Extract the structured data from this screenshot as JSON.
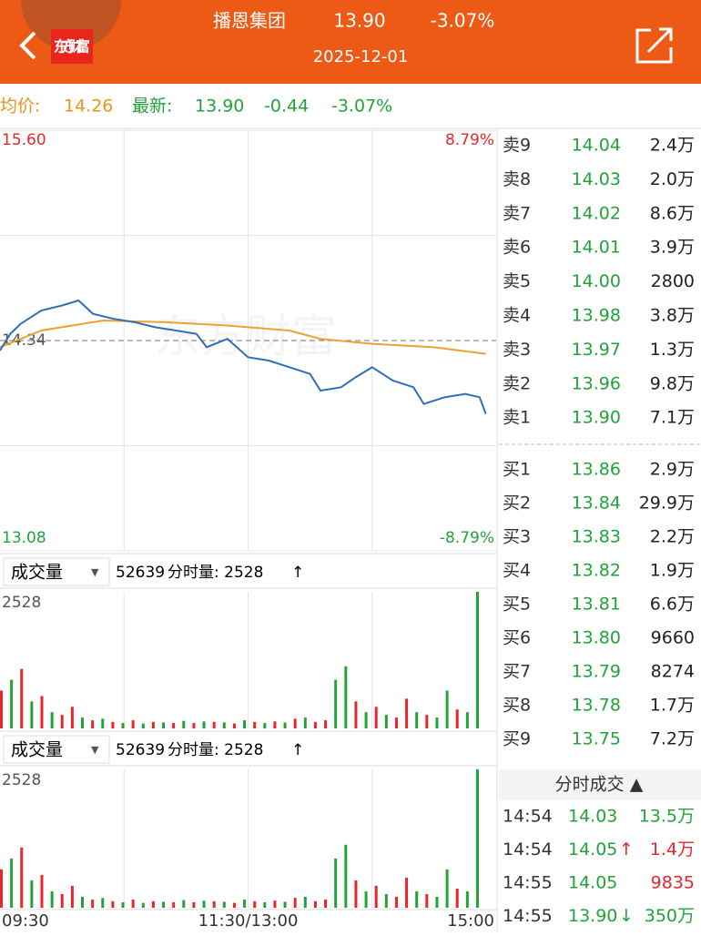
{
  "header": {
    "logo": "东方财富",
    "title": "播恩集团",
    "price": "13.90",
    "change": "-3.07%",
    "date": "2025-12-01"
  },
  "info": {
    "avg_label": "均价:",
    "avg": "14.26",
    "last_label": "最新:",
    "last": "13.90",
    "change": "-0.44",
    "pct": "-3.07%"
  },
  "watermark": "东方财富",
  "price_chart": {
    "ylim": [
      13.08,
      15.6
    ],
    "xlim": [
      0,
      240
    ],
    "yticks": [
      {
        "value": 15.6,
        "label": "15.60"
      },
      {
        "value": 14.34,
        "label": "14.34"
      },
      {
        "value": 13.08,
        "label": "13.08"
      }
    ],
    "pct_labels": [
      "8.79%",
      "-8.79%"
    ],
    "xticks": [
      {
        "value": 0,
        "label": "09:30"
      },
      {
        "value": 120,
        "label": "11:30/13:00"
      },
      {
        "value": 240,
        "label": "15:00"
      }
    ],
    "x": [
      0,
      5,
      10,
      15,
      20,
      30,
      38,
      45,
      55,
      65,
      75,
      85,
      95,
      100,
      110,
      120,
      130,
      140,
      150,
      155,
      165,
      172,
      180,
      190,
      200,
      205,
      215,
      225,
      232,
      235
    ],
    "price": [
      14.28,
      14.38,
      14.44,
      14.48,
      14.52,
      14.55,
      14.58,
      14.5,
      14.47,
      14.45,
      14.42,
      14.4,
      14.38,
      14.3,
      14.35,
      14.24,
      14.22,
      14.18,
      14.14,
      14.04,
      14.06,
      14.12,
      14.18,
      14.1,
      14.06,
      13.96,
      14,
      14.02,
      14,
      13.9
    ],
    "avg_x": [
      0,
      20,
      50,
      80,
      110,
      140,
      155,
      180,
      210,
      235
    ],
    "avg": [
      14.3,
      14.4,
      14.46,
      14.45,
      14.43,
      14.4,
      14.35,
      14.32,
      14.3,
      14.26
    ],
    "price_color": "#2f6fb5",
    "avg_color": "#f0a030"
  },
  "volume": {
    "label": "成交量",
    "total": "52639",
    "current": "分时量: 2528",
    "arrow": "↑",
    "ylim": [
      0,
      2528
    ],
    "values": [
      700,
      900,
      1100,
      500,
      600,
      300,
      250,
      400,
      200,
      150,
      180,
      120,
      100,
      150,
      90,
      120,
      110,
      100,
      140,
      100,
      130,
      120,
      110,
      90,
      150,
      120,
      100,
      130,
      110,
      180,
      200,
      120,
      150,
      900,
      1150,
      500,
      300,
      400,
      250,
      200,
      550,
      300,
      250,
      200,
      700,
      350,
      300,
      2528
    ],
    "colors": [
      "#e8262b",
      "#22a33a",
      "#e8262b",
      "#22a33a",
      "#e8262b",
      "#22a33a",
      "#e8262b",
      "#e8262b",
      "#22a33a",
      "#e8262b",
      "#22a33a",
      "#e8262b",
      "#22a33a",
      "#e8262b",
      "#22a33a",
      "#e8262b",
      "#22a33a",
      "#e8262b",
      "#22a33a",
      "#e8262b",
      "#22a33a",
      "#e8262b",
      "#22a33a",
      "#e8262b",
      "#22a33a",
      "#e8262b",
      "#22a33a",
      "#e8262b",
      "#22a33a",
      "#e8262b",
      "#22a33a",
      "#e8262b",
      "#e8262b",
      "#22a33a",
      "#22a33a",
      "#e8262b",
      "#22a33a",
      "#e8262b",
      "#22a33a",
      "#e8262b",
      "#e8262b",
      "#22a33a",
      "#e8262b",
      "#22a33a",
      "#22a33a",
      "#e8262b",
      "#22a33a",
      "#22a33a"
    ]
  },
  "asks": [
    {
      "label": "卖9",
      "price": "14.04",
      "vol": "2.4万"
    },
    {
      "label": "卖8",
      "price": "14.03",
      "vol": "2.0万"
    },
    {
      "label": "卖7",
      "price": "14.02",
      "vol": "8.6万"
    },
    {
      "label": "卖6",
      "price": "14.01",
      "vol": "3.9万"
    },
    {
      "label": "卖5",
      "price": "14.00",
      "vol": "2800"
    },
    {
      "label": "卖4",
      "price": "13.98",
      "vol": "3.8万"
    },
    {
      "label": "卖3",
      "price": "13.97",
      "vol": "1.3万"
    },
    {
      "label": "卖2",
      "price": "13.96",
      "vol": "9.8万"
    },
    {
      "label": "卖1",
      "price": "13.90",
      "vol": "7.1万"
    }
  ],
  "bids": [
    {
      "label": "买1",
      "price": "13.86",
      "vol": "2.9万"
    },
    {
      "label": "买2",
      "price": "13.84",
      "vol": "29.9万"
    },
    {
      "label": "买3",
      "price": "13.83",
      "vol": "2.2万"
    },
    {
      "label": "买4",
      "price": "13.82",
      "vol": "1.9万"
    },
    {
      "label": "买5",
      "price": "13.81",
      "vol": "6.6万"
    },
    {
      "label": "买6",
      "price": "13.80",
      "vol": "9660"
    },
    {
      "label": "买7",
      "price": "13.79",
      "vol": "8274"
    },
    {
      "label": "买8",
      "price": "13.78",
      "vol": "1.7万"
    },
    {
      "label": "买9",
      "price": "13.75",
      "vol": "7.2万"
    }
  ],
  "trades": {
    "title": "分时成交 ▲",
    "rows": [
      {
        "time": "14:54",
        "price": "14.03",
        "arrow": "",
        "vol": "13.5万",
        "vol_color": "#22a33a"
      },
      {
        "time": "14:54",
        "price": "14.05",
        "arrow": "↑",
        "vol": "1.4万",
        "vol_color": "#e8262b"
      },
      {
        "time": "14:55",
        "price": "14.05",
        "arrow": "",
        "vol": "9835",
        "vol_color": "#e8262b"
      },
      {
        "time": "14:55",
        "price": "13.90",
        "arrow": "↓",
        "vol": "350万",
        "vol_color": "#22a33a"
      }
    ]
  }
}
